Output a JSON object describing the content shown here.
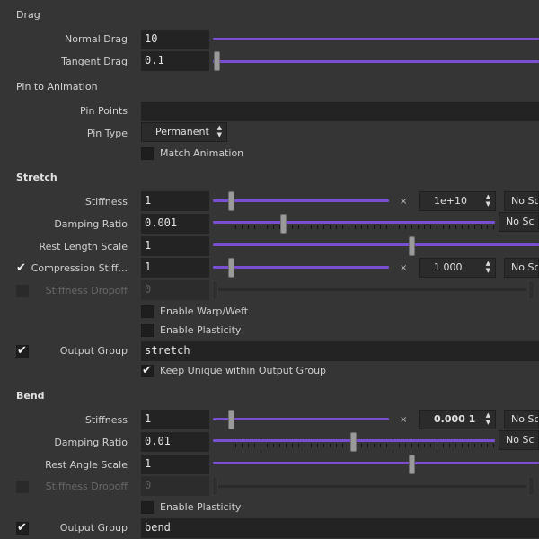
{
  "drag": {
    "header": "Drag",
    "normal_drag": {
      "label": "Normal Drag",
      "value": "10"
    },
    "tangent_drag": {
      "label": "Tangent Drag",
      "value": "0.1"
    }
  },
  "pin": {
    "header": "Pin to Animation",
    "pin_points": {
      "label": "Pin Points",
      "value": ""
    },
    "pin_type": {
      "label": "Pin Type",
      "value": "Permanent"
    },
    "match_animation": {
      "label": "Match Animation",
      "checked": false
    }
  },
  "stretch": {
    "header": "Stretch",
    "stiffness": {
      "label": "Stiffness",
      "value": "1",
      "multiplier": "1e+10",
      "scale_mode": "No Sc"
    },
    "damping_ratio": {
      "label": "Damping Ratio",
      "value": "0.001",
      "scale_mode": "No Sc"
    },
    "rest_length_scale": {
      "label": "Rest Length Scale",
      "value": "1"
    },
    "compression_stiffness": {
      "label": "Compression Stiff...",
      "enabled": true,
      "value": "1",
      "multiplier": "1 000",
      "scale_mode": "No Sc"
    },
    "stiffness_dropoff": {
      "label": "Stiffness Dropoff",
      "enabled": false,
      "value": "0"
    },
    "enable_warp_weft": {
      "label": "Enable Warp/Weft",
      "checked": false
    },
    "enable_plasticity": {
      "label": "Enable Plasticity",
      "checked": false
    },
    "output_group": {
      "label": "Output Group",
      "enabled": true,
      "value": "stretch"
    },
    "keep_unique": {
      "label": "Keep Unique within Output Group",
      "checked": true
    }
  },
  "bend": {
    "header": "Bend",
    "stiffness": {
      "label": "Stiffness",
      "value": "1",
      "multiplier": "0.000 1",
      "scale_mode": "No Sc"
    },
    "damping_ratio": {
      "label": "Damping Ratio",
      "value": "0.01",
      "scale_mode": "No Sc"
    },
    "rest_angle_scale": {
      "label": "Rest Angle Scale",
      "value": "1"
    },
    "stiffness_dropoff": {
      "label": "Stiffness Dropoff",
      "enabled": false,
      "value": "0"
    },
    "enable_plasticity": {
      "label": "Enable Plasticity",
      "checked": false
    },
    "output_group": {
      "label": "Output Group",
      "enabled": true,
      "value": "bend"
    }
  },
  "glyphs": {
    "check": "✔",
    "times": "×",
    "up": "▲",
    "down": "▼"
  },
  "colors": {
    "accent": "#7a4fd1",
    "background": "#353535",
    "field": "#232323"
  }
}
